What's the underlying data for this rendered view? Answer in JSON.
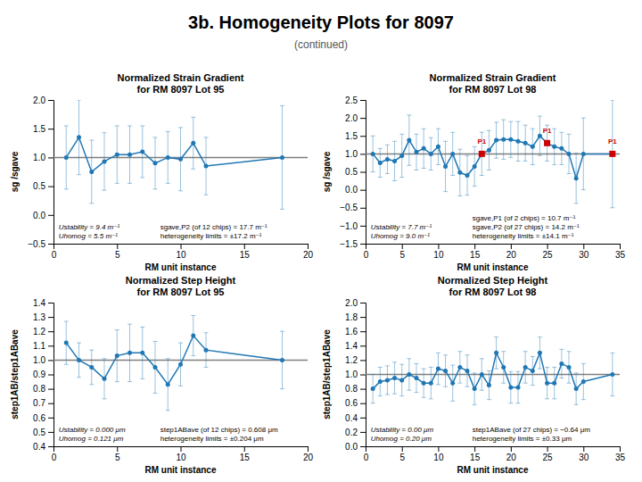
{
  "title": "3b. Homogeneity Plots for 8097",
  "subtitle": "(continued)",
  "chart_data": [
    {
      "type": "line",
      "title": "Normalized Strain Gradient\nfor RM 8097 Lot 95",
      "x_label": "RM unit instance",
      "y_label": "sg /sgave",
      "xlim": [
        0,
        20
      ],
      "ylim": [
        -0.5,
        2.0
      ],
      "xticks": [
        0,
        5,
        10,
        15,
        20
      ],
      "yticks": [
        {
          "value": -0.5,
          "label": "−0.5"
        },
        {
          "value": 0.0,
          "label": "0.0"
        },
        0.5,
        {
          "value": 1.0,
          "label": "1.0"
        },
        1.5,
        {
          "value": 2.0,
          "label": "2.0"
        }
      ],
      "grid": false,
      "x": [
        1,
        2,
        3,
        4,
        5,
        6,
        7,
        8,
        9,
        10,
        11,
        12,
        18
      ],
      "series": [
        {
          "marker": "circle",
          "values": [
            1.0,
            1.35,
            0.75,
            0.93,
            1.05,
            1.05,
            1.1,
            0.9,
            1.0,
            0.97,
            1.25,
            0.85,
            1.0
          ],
          "errors": [
            0.55,
            0.65,
            0.55,
            0.5,
            0.5,
            0.5,
            0.45,
            0.45,
            0.45,
            0.55,
            0.45,
            0.5,
            0.9
          ]
        }
      ],
      "reference_lines": [
        {
          "value": 1.0
        }
      ],
      "annotations": [
        "Ustability = 9.4 m⁻¹",
        "Uhomog = 5.5 m⁻¹",
        "sgave,P2 (of 12 chips) = 17.7 m⁻¹",
        "heterogeneity limits = ±17.2 m⁻¹"
      ]
    },
    {
      "type": "line",
      "title": "Normalized Strain Gradient\nfor RM 8097 Lot 98",
      "x_label": "RM unit instance",
      "y_label": "sg /sgave",
      "xlim": [
        0,
        35
      ],
      "ylim": [
        -1.5,
        2.5
      ],
      "xticks": [
        0,
        5,
        10,
        15,
        20,
        25,
        30,
        35
      ],
      "yticks": [
        {
          "value": -1.5,
          "label": "−1.5"
        },
        {
          "value": -1.0,
          "label": "−1.0"
        },
        {
          "value": -0.5,
          "label": "−0.5"
        },
        {
          "value": 0.0,
          "label": "0.0"
        },
        0.5,
        {
          "value": 1.0,
          "label": "1.0"
        },
        1.5,
        {
          "value": 2.0,
          "label": "2.0"
        },
        2.5
      ],
      "grid": false,
      "x": [
        1,
        2,
        3,
        4,
        5,
        6,
        7,
        8,
        9,
        10,
        11,
        12,
        13,
        14,
        15,
        16,
        17,
        18,
        19,
        20,
        21,
        22,
        23,
        24,
        25,
        26,
        27,
        28,
        29,
        30,
        34
      ],
      "series": [
        {
          "marker": "circle",
          "values": [
            1.0,
            0.75,
            0.85,
            0.8,
            0.95,
            1.38,
            1.05,
            1.15,
            1.0,
            1.2,
            0.65,
            1.0,
            0.48,
            0.4,
            0.65,
            1.0,
            1.1,
            1.38,
            1.4,
            1.4,
            1.35,
            1.3,
            1.2,
            1.5,
            1.3,
            1.2,
            1.15,
            1.0,
            0.32,
            1.0,
            1.0
          ],
          "errors": [
            0.5,
            0.4,
            0.4,
            0.55,
            0.6,
            0.7,
            0.5,
            0.55,
            0.45,
            0.5,
            0.7,
            0.6,
            0.65,
            0.55,
            0.55,
            0.6,
            0.55,
            0.5,
            0.55,
            0.5,
            0.55,
            0.5,
            0.5,
            0.55,
            0.5,
            0.5,
            0.45,
            0.55,
            0.7,
            1.0,
            1.5
          ]
        },
        {
          "type": "scatter",
          "marker": "square",
          "color": "#CC0000",
          "x": [
            16,
            25,
            34
          ],
          "values": [
            1.0,
            1.3,
            1.0
          ],
          "labels": [
            "P1",
            "P1",
            "P1"
          ]
        }
      ],
      "reference_lines": [
        {
          "value": 1.0
        }
      ],
      "annotations": [
        "Ustability = 7.7 m⁻¹",
        "Uhomog = 9.0 m⁻¹",
        "sgave,P1 (of 2 chips) = 10.7 m⁻¹",
        "sgave,P2 (of 27 chips) = 14.2 m⁻¹",
        "heterogeneity limits = ±14.1 m⁻¹"
      ]
    },
    {
      "type": "line",
      "title": "Normalized Step Height\nfor RM 8097 Lot 95",
      "x_label": "RM unit instance",
      "y_label": "step1AB/step1ABave",
      "xlim": [
        0,
        20
      ],
      "ylim": [
        0.4,
        1.4
      ],
      "xticks": [
        0,
        5,
        10,
        15,
        20
      ],
      "yticks": [
        0.4,
        0.5,
        0.6,
        0.7,
        0.8,
        0.9,
        {
          "value": 1.0,
          "label": "1.0"
        },
        1.1,
        1.2,
        1.3,
        1.4
      ],
      "grid": false,
      "x": [
        1,
        2,
        3,
        4,
        5,
        6,
        7,
        8,
        9,
        10,
        11,
        12,
        18
      ],
      "series": [
        {
          "marker": "circle",
          "values": [
            1.12,
            1.0,
            0.95,
            0.87,
            1.03,
            1.05,
            1.05,
            0.95,
            0.83,
            0.97,
            1.17,
            1.07,
            1.0
          ],
          "errors": [
            0.15,
            0.12,
            0.12,
            0.14,
            0.18,
            0.2,
            0.18,
            0.18,
            0.18,
            0.15,
            0.14,
            0.12,
            0.2
          ]
        }
      ],
      "reference_lines": [
        {
          "value": 1.0
        }
      ],
      "annotations": [
        "Ustability = 0.000 μm",
        "Uhomog = 0.121 μm",
        "step1ABave (of 12 chips) = 0.608 μm",
        "heterogeneity limits = ±0.204 μm"
      ]
    },
    {
      "type": "line",
      "title": "Normalized Step Height\nfor RM 8097 Lot 98",
      "x_label": "RM unit instance",
      "y_label": "step1AB/step1ABave",
      "xlim": [
        0,
        35
      ],
      "ylim": [
        0.0,
        2.0
      ],
      "xticks": [
        0,
        5,
        10,
        15,
        20,
        25,
        30,
        35
      ],
      "yticks": [
        {
          "value": 0.0,
          "label": "0.0"
        },
        0.2,
        0.4,
        0.6,
        0.8,
        {
          "value": 1.0,
          "label": "1.0"
        },
        1.2,
        1.4,
        1.6,
        1.8,
        {
          "value": 2.0,
          "label": "2.0"
        }
      ],
      "grid": false,
      "x": [
        1,
        2,
        3,
        4,
        5,
        6,
        7,
        8,
        9,
        10,
        11,
        12,
        13,
        14,
        15,
        16,
        17,
        18,
        19,
        20,
        21,
        22,
        23,
        24,
        25,
        26,
        27,
        28,
        29,
        30,
        34
      ],
      "series": [
        {
          "marker": "circle",
          "values": [
            0.8,
            0.9,
            0.92,
            0.95,
            0.92,
            1.0,
            0.95,
            0.88,
            0.88,
            1.08,
            1.05,
            0.88,
            1.1,
            1.05,
            0.8,
            1.0,
            0.85,
            1.3,
            1.1,
            0.82,
            0.82,
            1.1,
            1.05,
            1.3,
            0.88,
            0.88,
            1.15,
            1.1,
            0.8,
            0.9,
            1.0
          ],
          "errors": [
            0.2,
            0.2,
            0.2,
            0.22,
            0.22,
            0.22,
            0.2,
            0.2,
            0.22,
            0.22,
            0.22,
            0.25,
            0.22,
            0.22,
            0.22,
            0.22,
            0.2,
            0.22,
            0.22,
            0.22,
            0.22,
            0.22,
            0.2,
            0.22,
            0.22,
            0.22,
            0.2,
            0.22,
            0.22,
            0.25,
            0.3
          ]
        }
      ],
      "reference_lines": [
        {
          "value": 1.0
        }
      ],
      "annotations": [
        "Ustability = 0.00 μm",
        "Uhomog = 0.20 μm",
        "step1ABave (of 27 chips) = −0.64 μm",
        "heterogeneity limits = ±0.33 μm"
      ]
    }
  ]
}
